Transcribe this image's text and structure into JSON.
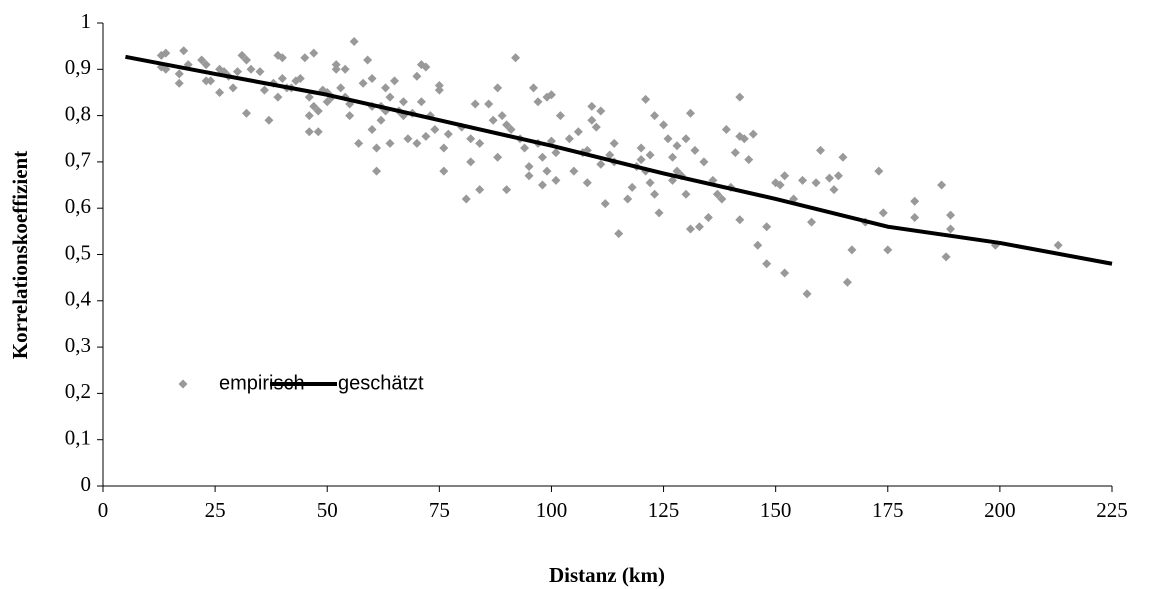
{
  "chart_data": {
    "type": "scatter",
    "xlabel": "Distanz (km)",
    "ylabel": "Korrelationskoeffizient",
    "xlim": [
      0,
      225
    ],
    "xticks": [
      0,
      25,
      50,
      75,
      100,
      125,
      150,
      175,
      200,
      225
    ],
    "ylim": [
      0,
      1
    ],
    "yticks": [
      0,
      {
        "value": 0.1,
        "label": "0,1"
      },
      {
        "value": 0.2,
        "label": "0,2"
      },
      {
        "value": 0.3,
        "label": "0,3"
      },
      {
        "value": 0.4,
        "label": "0,4"
      },
      {
        "value": 0.5,
        "label": "0,5"
      },
      {
        "value": 0.6,
        "label": "0,6"
      },
      {
        "value": 0.7,
        "label": "0,7"
      },
      {
        "value": 0.8,
        "label": "0,8"
      },
      {
        "value": 0.9,
        "label": "0,9"
      },
      1
    ],
    "legend": "lower left",
    "series": [
      {
        "name": "empirisch",
        "type": "scatter",
        "color": "#999999",
        "x": [
          13,
          14,
          13,
          14,
          17,
          17,
          18,
          19,
          22,
          23,
          23,
          24,
          26,
          26,
          27,
          28,
          29,
          30,
          31,
          32,
          32,
          33,
          35,
          36,
          37,
          38,
          39,
          39,
          40,
          40,
          41,
          42,
          43,
          44,
          45,
          46,
          46,
          46,
          47,
          47,
          48,
          48,
          49,
          50,
          50,
          51,
          52,
          52,
          53,
          54,
          54,
          55,
          55,
          56,
          57,
          58,
          59,
          60,
          60,
          60,
          61,
          61,
          62,
          62,
          63,
          63,
          64,
          64,
          65,
          66,
          67,
          67,
          68,
          69,
          70,
          70,
          71,
          71,
          72,
          72,
          73,
          74,
          75,
          75,
          76,
          76,
          77,
          80,
          81,
          82,
          82,
          83,
          84,
          84,
          86,
          87,
          88,
          88,
          89,
          90,
          90,
          91,
          92,
          93,
          94,
          95,
          95,
          96,
          97,
          97,
          98,
          98,
          99,
          99,
          100,
          100,
          101,
          101,
          102,
          104,
          105,
          106,
          107,
          108,
          108,
          109,
          109,
          110,
          111,
          111,
          112,
          113,
          114,
          114,
          115,
          117,
          118,
          119,
          120,
          120,
          121,
          121,
          122,
          122,
          123,
          123,
          124,
          125,
          126,
          127,
          127,
          128,
          128,
          129,
          130,
          130,
          131,
          131,
          132,
          133,
          134,
          135,
          136,
          137,
          138,
          139,
          140,
          141,
          142,
          142,
          142,
          143,
          144,
          145,
          146,
          148,
          148,
          150,
          151,
          152,
          152,
          154,
          156,
          157,
          158,
          159,
          160,
          162,
          163,
          164,
          165,
          166,
          167,
          170,
          173,
          174,
          175,
          181,
          181,
          187,
          188,
          189,
          189,
          199,
          213
        ],
        "values": [
          0.93,
          0.935,
          0.905,
          0.9,
          0.87,
          0.89,
          0.94,
          0.91,
          0.92,
          0.91,
          0.875,
          0.875,
          0.85,
          0.9,
          0.895,
          0.885,
          0.86,
          0.895,
          0.93,
          0.92,
          0.805,
          0.9,
          0.895,
          0.855,
          0.79,
          0.87,
          0.93,
          0.84,
          0.925,
          0.88,
          0.86,
          0.86,
          0.875,
          0.88,
          0.925,
          0.84,
          0.8,
          0.765,
          0.935,
          0.82,
          0.765,
          0.81,
          0.855,
          0.85,
          0.83,
          0.84,
          0.9,
          0.91,
          0.86,
          0.84,
          0.9,
          0.825,
          0.8,
          0.96,
          0.74,
          0.87,
          0.92,
          0.88,
          0.82,
          0.77,
          0.73,
          0.68,
          0.79,
          0.82,
          0.86,
          0.81,
          0.84,
          0.74,
          0.875,
          0.81,
          0.83,
          0.8,
          0.75,
          0.805,
          0.74,
          0.885,
          0.91,
          0.83,
          0.905,
          0.755,
          0.8,
          0.77,
          0.865,
          0.855,
          0.73,
          0.68,
          0.76,
          0.775,
          0.62,
          0.75,
          0.7,
          0.825,
          0.64,
          0.74,
          0.825,
          0.79,
          0.86,
          0.71,
          0.8,
          0.64,
          0.78,
          0.77,
          0.925,
          0.75,
          0.73,
          0.69,
          0.67,
          0.86,
          0.83,
          0.74,
          0.65,
          0.71,
          0.84,
          0.68,
          0.845,
          0.745,
          0.72,
          0.66,
          0.8,
          0.75,
          0.68,
          0.765,
          0.72,
          0.725,
          0.655,
          0.82,
          0.79,
          0.775,
          0.81,
          0.695,
          0.61,
          0.715,
          0.74,
          0.7,
          0.545,
          0.62,
          0.645,
          0.69,
          0.73,
          0.705,
          0.835,
          0.68,
          0.715,
          0.655,
          0.8,
          0.63,
          0.59,
          0.78,
          0.75,
          0.71,
          0.66,
          0.735,
          0.68,
          0.67,
          0.75,
          0.63,
          0.805,
          0.555,
          0.725,
          0.56,
          0.7,
          0.58,
          0.66,
          0.63,
          0.62,
          0.77,
          0.645,
          0.72,
          0.84,
          0.755,
          0.575,
          0.75,
          0.705,
          0.76,
          0.52,
          0.48,
          0.56,
          0.655,
          0.65,
          0.67,
          0.46,
          0.62,
          0.66,
          0.415,
          0.57,
          0.655,
          0.725,
          0.665,
          0.64,
          0.67,
          0.71,
          0.44,
          0.51,
          0.57,
          0.68,
          0.59,
          0.51,
          0.615,
          0.58,
          0.65,
          0.495,
          0.555,
          0.585,
          0.52,
          0.52
        ]
      },
      {
        "name": "geschätzt",
        "type": "line",
        "color": "#000000",
        "x": [
          5,
          25,
          50,
          75,
          100,
          125,
          150,
          175,
          200,
          225
        ],
        "values": [
          0.927,
          0.89,
          0.845,
          0.79,
          0.735,
          0.675,
          0.62,
          0.56,
          0.525,
          0.48
        ]
      }
    ]
  }
}
